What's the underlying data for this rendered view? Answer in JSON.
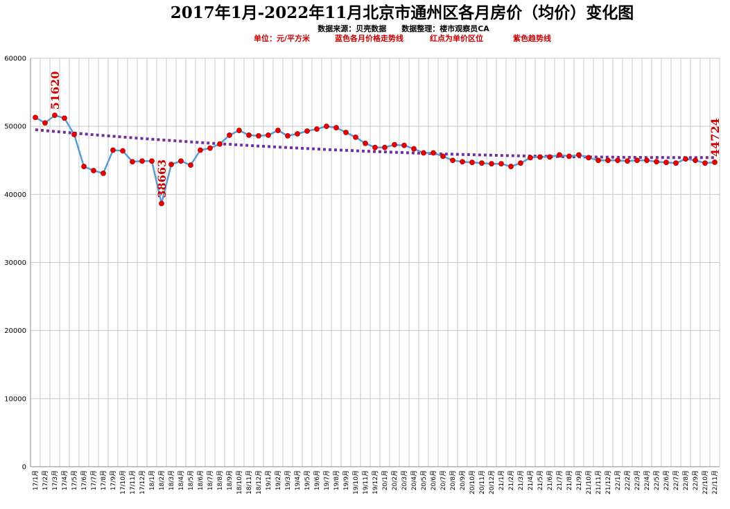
{
  "chart_data": {
    "type": "line",
    "title": "2017年1月-2022年11月北京市通州区各月房价（均价）变化图",
    "subtitle": "数据来源：贝壳数据　　数据整理：楼市观察员CA",
    "legend_notes": [
      "单位：元/平方米",
      "蓝色各月价格走势线",
      "红点为单价区位",
      "紫色趋势线"
    ],
    "ylim": [
      0,
      60000
    ],
    "yticks": [
      "0",
      "10000",
      "20000",
      "30000",
      "40000",
      "50000",
      "60000"
    ],
    "grid": true,
    "colors": {
      "line": "#5b9bd5",
      "point": "#e60000",
      "trend": "#7030a0",
      "annotation": "#cc0000",
      "grid": "#c8c8c8"
    },
    "categories": [
      "17/1月",
      "17/2月",
      "17/3月",
      "17/4月",
      "17/5月",
      "17/6月",
      "17/7月",
      "17/8月",
      "17/9月",
      "17/10月",
      "17/11月",
      "17/12月",
      "18/1月",
      "18/2月",
      "18/3月",
      "18/4月",
      "18/5月",
      "18/6月",
      "18/7月",
      "18/8月",
      "18/9月",
      "18/10月",
      "18/11月",
      "18/12月",
      "19/1月",
      "19/2月",
      "19/3月",
      "19/4月",
      "19/5月",
      "19/6月",
      "19/7月",
      "19/8月",
      "19/9月",
      "19/10月",
      "19/11月",
      "19/12月",
      "20/1月",
      "20/2月",
      "20/3月",
      "20/4月",
      "20/5月",
      "20/6月",
      "20/7月",
      "20/8月",
      "20/9月",
      "20/10月",
      "20/11月",
      "20/12月",
      "21/1月",
      "21/2月",
      "21/3月",
      "21/4月",
      "21/5月",
      "21/6月",
      "21/7月",
      "21/8月",
      "21/9月",
      "21/10月",
      "21/11月",
      "21/12月",
      "22/1月",
      "22/2月",
      "22/3月",
      "22/4月",
      "22/5月",
      "22/6月",
      "22/7月",
      "22/8月",
      "22/9月",
      "22/10月",
      "22/11月"
    ],
    "series": [
      {
        "values": [
          51300,
          50500,
          51620,
          51200,
          48800,
          44100,
          43500,
          43100,
          46500,
          46400,
          44800,
          44900,
          44900,
          38663,
          44400,
          44900,
          44300,
          46500,
          46800,
          47400,
          48700,
          49400,
          48700,
          48600,
          48700,
          49400,
          48600,
          48900,
          49300,
          49600,
          50000,
          49800,
          49100,
          48400,
          47500,
          46900,
          46900,
          47300,
          47200,
          46700,
          46100,
          46100,
          45600,
          45000,
          44800,
          44700,
          44600,
          44500,
          44500,
          44100,
          44600,
          45400,
          45500,
          45500,
          45800,
          45600,
          45800,
          45400,
          45000,
          45000,
          45000,
          44900,
          45000,
          45000,
          44800,
          44700,
          44600,
          45200,
          45000,
          44600,
          44724
        ]
      }
    ],
    "trend": {
      "start": 49500,
      "end": 45400
    },
    "annotations": [
      {
        "category": "17/3月",
        "label": "51620"
      },
      {
        "category": "18/2月",
        "label": "38663"
      },
      {
        "category": "22/11月",
        "label": "44724"
      }
    ]
  }
}
